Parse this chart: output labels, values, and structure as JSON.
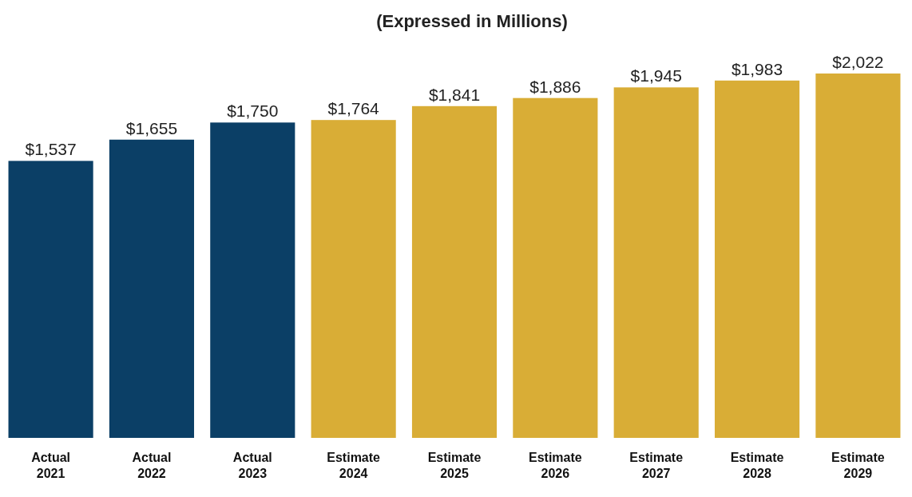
{
  "chart_data": {
    "type": "bar",
    "title": "(Expressed in Millions)",
    "categories": [
      "Actual 2021",
      "Actual 2022",
      "Actual 2023",
      "Estimate 2024",
      "Estimate 2025",
      "Estimate 2026",
      "Estimate 2027",
      "Estimate 2028",
      "Estimate 2029"
    ],
    "values": [
      1537,
      1655,
      1750,
      1764,
      1841,
      1886,
      1945,
      1983,
      2022
    ],
    "colors": [
      "#0b3f66",
      "#0b3f66",
      "#0b3f66",
      "#d9ad36",
      "#d9ad36",
      "#d9ad36",
      "#d9ad36",
      "#d9ad36",
      "#d9ad36"
    ],
    "value_labels": [
      "$1,537",
      "$1,655",
      "$1,750",
      "$1,764",
      "$1,841",
      "$1,886",
      "$1,945",
      "$1,983",
      "$2,022"
    ]
  }
}
